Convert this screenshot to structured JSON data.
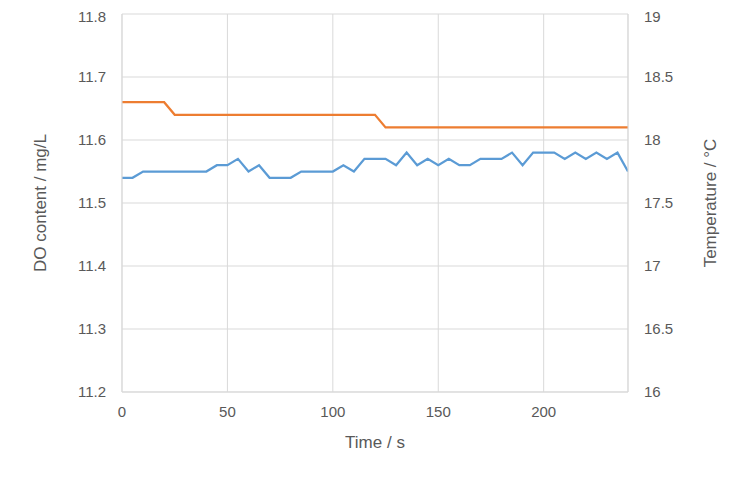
{
  "chart_data": {
    "type": "line",
    "xlabel": "Time / s",
    "ylabel": "DO content / mg/L",
    "y2label": "Temperature / °C",
    "x": [
      0,
      5,
      10,
      15,
      20,
      25,
      30,
      35,
      40,
      45,
      50,
      55,
      60,
      65,
      70,
      75,
      80,
      85,
      90,
      95,
      100,
      105,
      110,
      115,
      120,
      125,
      130,
      135,
      140,
      145,
      150,
      155,
      160,
      165,
      170,
      175,
      180,
      185,
      190,
      195,
      200,
      205,
      210,
      215,
      220,
      225,
      230,
      235,
      240
    ],
    "series": [
      {
        "name": "DO content",
        "color": "#5b9bd5",
        "values": [
          11.54,
          11.54,
          11.55,
          11.55,
          11.55,
          11.55,
          11.55,
          11.55,
          11.55,
          11.56,
          11.56,
          11.57,
          11.55,
          11.56,
          11.54,
          11.54,
          11.54,
          11.55,
          11.55,
          11.55,
          11.55,
          11.56,
          11.55,
          11.57,
          11.57,
          11.57,
          11.56,
          11.58,
          11.56,
          11.57,
          11.56,
          11.57,
          11.56,
          11.56,
          11.57,
          11.57,
          11.57,
          11.58,
          11.56,
          11.58,
          11.58,
          11.58,
          11.57,
          11.58,
          11.57,
          11.58,
          11.57,
          11.58,
          11.55
        ]
      },
      {
        "name": "Temperature",
        "color": "#ed7d31",
        "axis": "y2",
        "values": [
          18.3,
          18.3,
          18.3,
          18.3,
          18.3,
          18.2,
          18.2,
          18.2,
          18.2,
          18.2,
          18.2,
          18.2,
          18.2,
          18.2,
          18.2,
          18.2,
          18.2,
          18.2,
          18.2,
          18.2,
          18.2,
          18.2,
          18.2,
          18.2,
          18.2,
          18.1,
          18.1,
          18.1,
          18.1,
          18.1,
          18.1,
          18.1,
          18.1,
          18.1,
          18.1,
          18.1,
          18.1,
          18.1,
          18.1,
          18.1,
          18.1,
          18.1,
          18.1,
          18.1,
          18.1,
          18.1,
          18.1,
          18.1,
          18.1
        ]
      }
    ],
    "xlim": [
      0,
      240
    ],
    "xticks": [
      0,
      50,
      100,
      150,
      200
    ],
    "ylim": [
      11.2,
      11.8
    ],
    "yticks": [
      11.2,
      11.3,
      11.4,
      11.5,
      11.6,
      11.7,
      11.8
    ],
    "y2lim": [
      16,
      19
    ],
    "y2ticks": [
      16,
      16.5,
      17,
      17.5,
      18,
      18.5,
      19
    ],
    "grid": true
  }
}
